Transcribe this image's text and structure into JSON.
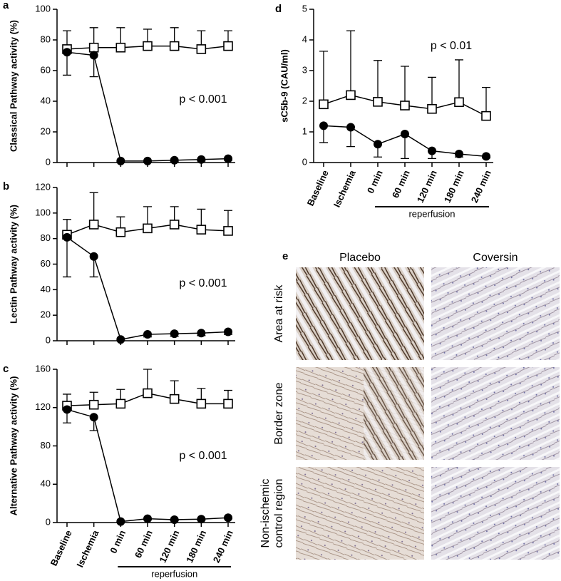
{
  "chart_data": [
    {
      "type": "line",
      "panel": "a",
      "y_label": "Classical Pathway activity (%)",
      "annotation": "p < 0.001",
      "categories": [
        null,
        null,
        null,
        null,
        null,
        null,
        null
      ],
      "ylim": [
        0,
        100
      ],
      "yticks": [
        0,
        20,
        40,
        60,
        80,
        100
      ],
      "series": [
        {
          "marker": "square",
          "color": "#000000",
          "values": [
            74,
            75,
            75,
            76,
            76,
            74,
            76
          ],
          "error": [
            12,
            13,
            13,
            11,
            12,
            12,
            10
          ]
        },
        {
          "marker": "circle",
          "color": "#000000",
          "values": [
            72,
            70,
            1,
            1,
            1.5,
            2,
            2.5
          ],
          "error": [
            15,
            14,
            1,
            1,
            1,
            1,
            1
          ]
        }
      ]
    },
    {
      "type": "line",
      "panel": "b",
      "y_label": "Lectin Pathway activity (%)",
      "annotation": "p < 0.001",
      "categories": [
        null,
        null,
        null,
        null,
        null,
        null,
        null
      ],
      "ylim": [
        0,
        120
      ],
      "yticks": [
        0,
        20,
        40,
        60,
        80,
        100,
        120
      ],
      "series": [
        {
          "marker": "square",
          "color": "#000000",
          "values": [
            83,
            91,
            85,
            88,
            91,
            87,
            86
          ],
          "error": [
            12,
            25,
            12,
            17,
            14,
            16,
            16
          ]
        },
        {
          "marker": "circle",
          "color": "#000000",
          "values": [
            81,
            66,
            1,
            5,
            5.5,
            6,
            7
          ],
          "error": [
            31,
            16,
            1,
            2,
            2,
            2,
            2
          ]
        }
      ]
    },
    {
      "type": "line",
      "panel": "c",
      "y_label": "Alternative Pathway activity (%)",
      "annotation": "p < 0.001",
      "categories": [
        "Baseline",
        "Ischemia",
        "0 min",
        "60 min",
        "120 min",
        "180 min",
        "240 min"
      ],
      "x_group_label": "reperfusion",
      "ylim": [
        0,
        160
      ],
      "yticks": [
        0,
        40,
        80,
        120,
        160
      ],
      "series": [
        {
          "marker": "square",
          "color": "#000000",
          "values": [
            122,
            123,
            124,
            135,
            129,
            124,
            124
          ],
          "error": [
            12,
            13,
            15,
            25,
            19,
            16,
            14
          ]
        },
        {
          "marker": "circle",
          "color": "#000000",
          "values": [
            118,
            110,
            1,
            4,
            3,
            3.5,
            5
          ],
          "error": [
            14,
            14,
            1,
            1,
            1,
            1,
            1
          ]
        }
      ]
    },
    {
      "type": "line",
      "panel": "d",
      "y_label": "sC5b-9 (CAU/ml)",
      "annotation": "p < 0.01",
      "categories": [
        "Baseline",
        "Ischemia",
        "0 min",
        "60 min",
        "120 min",
        "180 min",
        "240 min"
      ],
      "x_group_label": "reperfusion",
      "ylim": [
        0,
        5
      ],
      "yticks": [
        0,
        1,
        2,
        3,
        4,
        5
      ],
      "series": [
        {
          "marker": "square",
          "color": "#000000",
          "values": [
            1.9,
            2.2,
            1.98,
            1.86,
            1.75,
            1.97,
            1.52
          ],
          "error": [
            1.73,
            2.1,
            1.35,
            1.28,
            1.03,
            1.38,
            0.93
          ]
        },
        {
          "marker": "circle",
          "color": "#000000",
          "values": [
            1.2,
            1.15,
            0.6,
            0.93,
            0.38,
            0.28,
            0.2
          ],
          "error": [
            0.55,
            0.63,
            0.42,
            0.8,
            0.25,
            0.1,
            0.05
          ]
        }
      ]
    }
  ],
  "image_panel": {
    "panel": "e",
    "columns": [
      "Placebo",
      "Coversin"
    ],
    "rows": [
      [
        "Area at risk"
      ],
      [
        "Border zone"
      ],
      [
        "Non-ischemic",
        "control region"
      ]
    ]
  }
}
